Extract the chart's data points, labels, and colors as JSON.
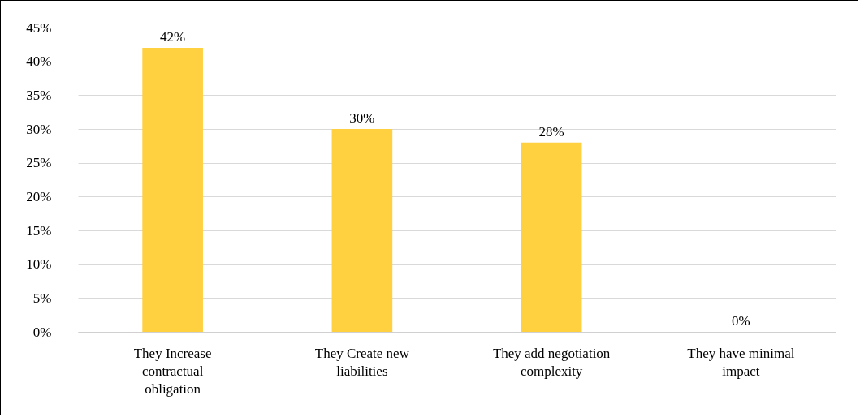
{
  "chart_data": {
    "type": "bar",
    "categories": [
      "They Increase contractual obligation",
      "They Create new liabilities",
      "They add negotiation complexity",
      "They have minimal impact"
    ],
    "values": [
      42,
      30,
      28,
      0
    ],
    "value_labels": [
      "42%",
      "30%",
      "28%",
      "0%"
    ],
    "color": "#ffd040",
    "ylim": [
      0,
      45
    ],
    "yticks": [
      {
        "value": 0,
        "label": "0%"
      },
      {
        "value": 5,
        "label": "5%"
      },
      {
        "value": 10,
        "label": "10%"
      },
      {
        "value": 15,
        "label": "15%"
      },
      {
        "value": 20,
        "label": "20%"
      },
      {
        "value": 25,
        "label": "25%"
      },
      {
        "value": 30,
        "label": "30%"
      },
      {
        "value": 35,
        "label": "35%"
      },
      {
        "value": 40,
        "label": "40%"
      },
      {
        "value": 45,
        "label": "45%"
      }
    ],
    "grid": "y"
  }
}
